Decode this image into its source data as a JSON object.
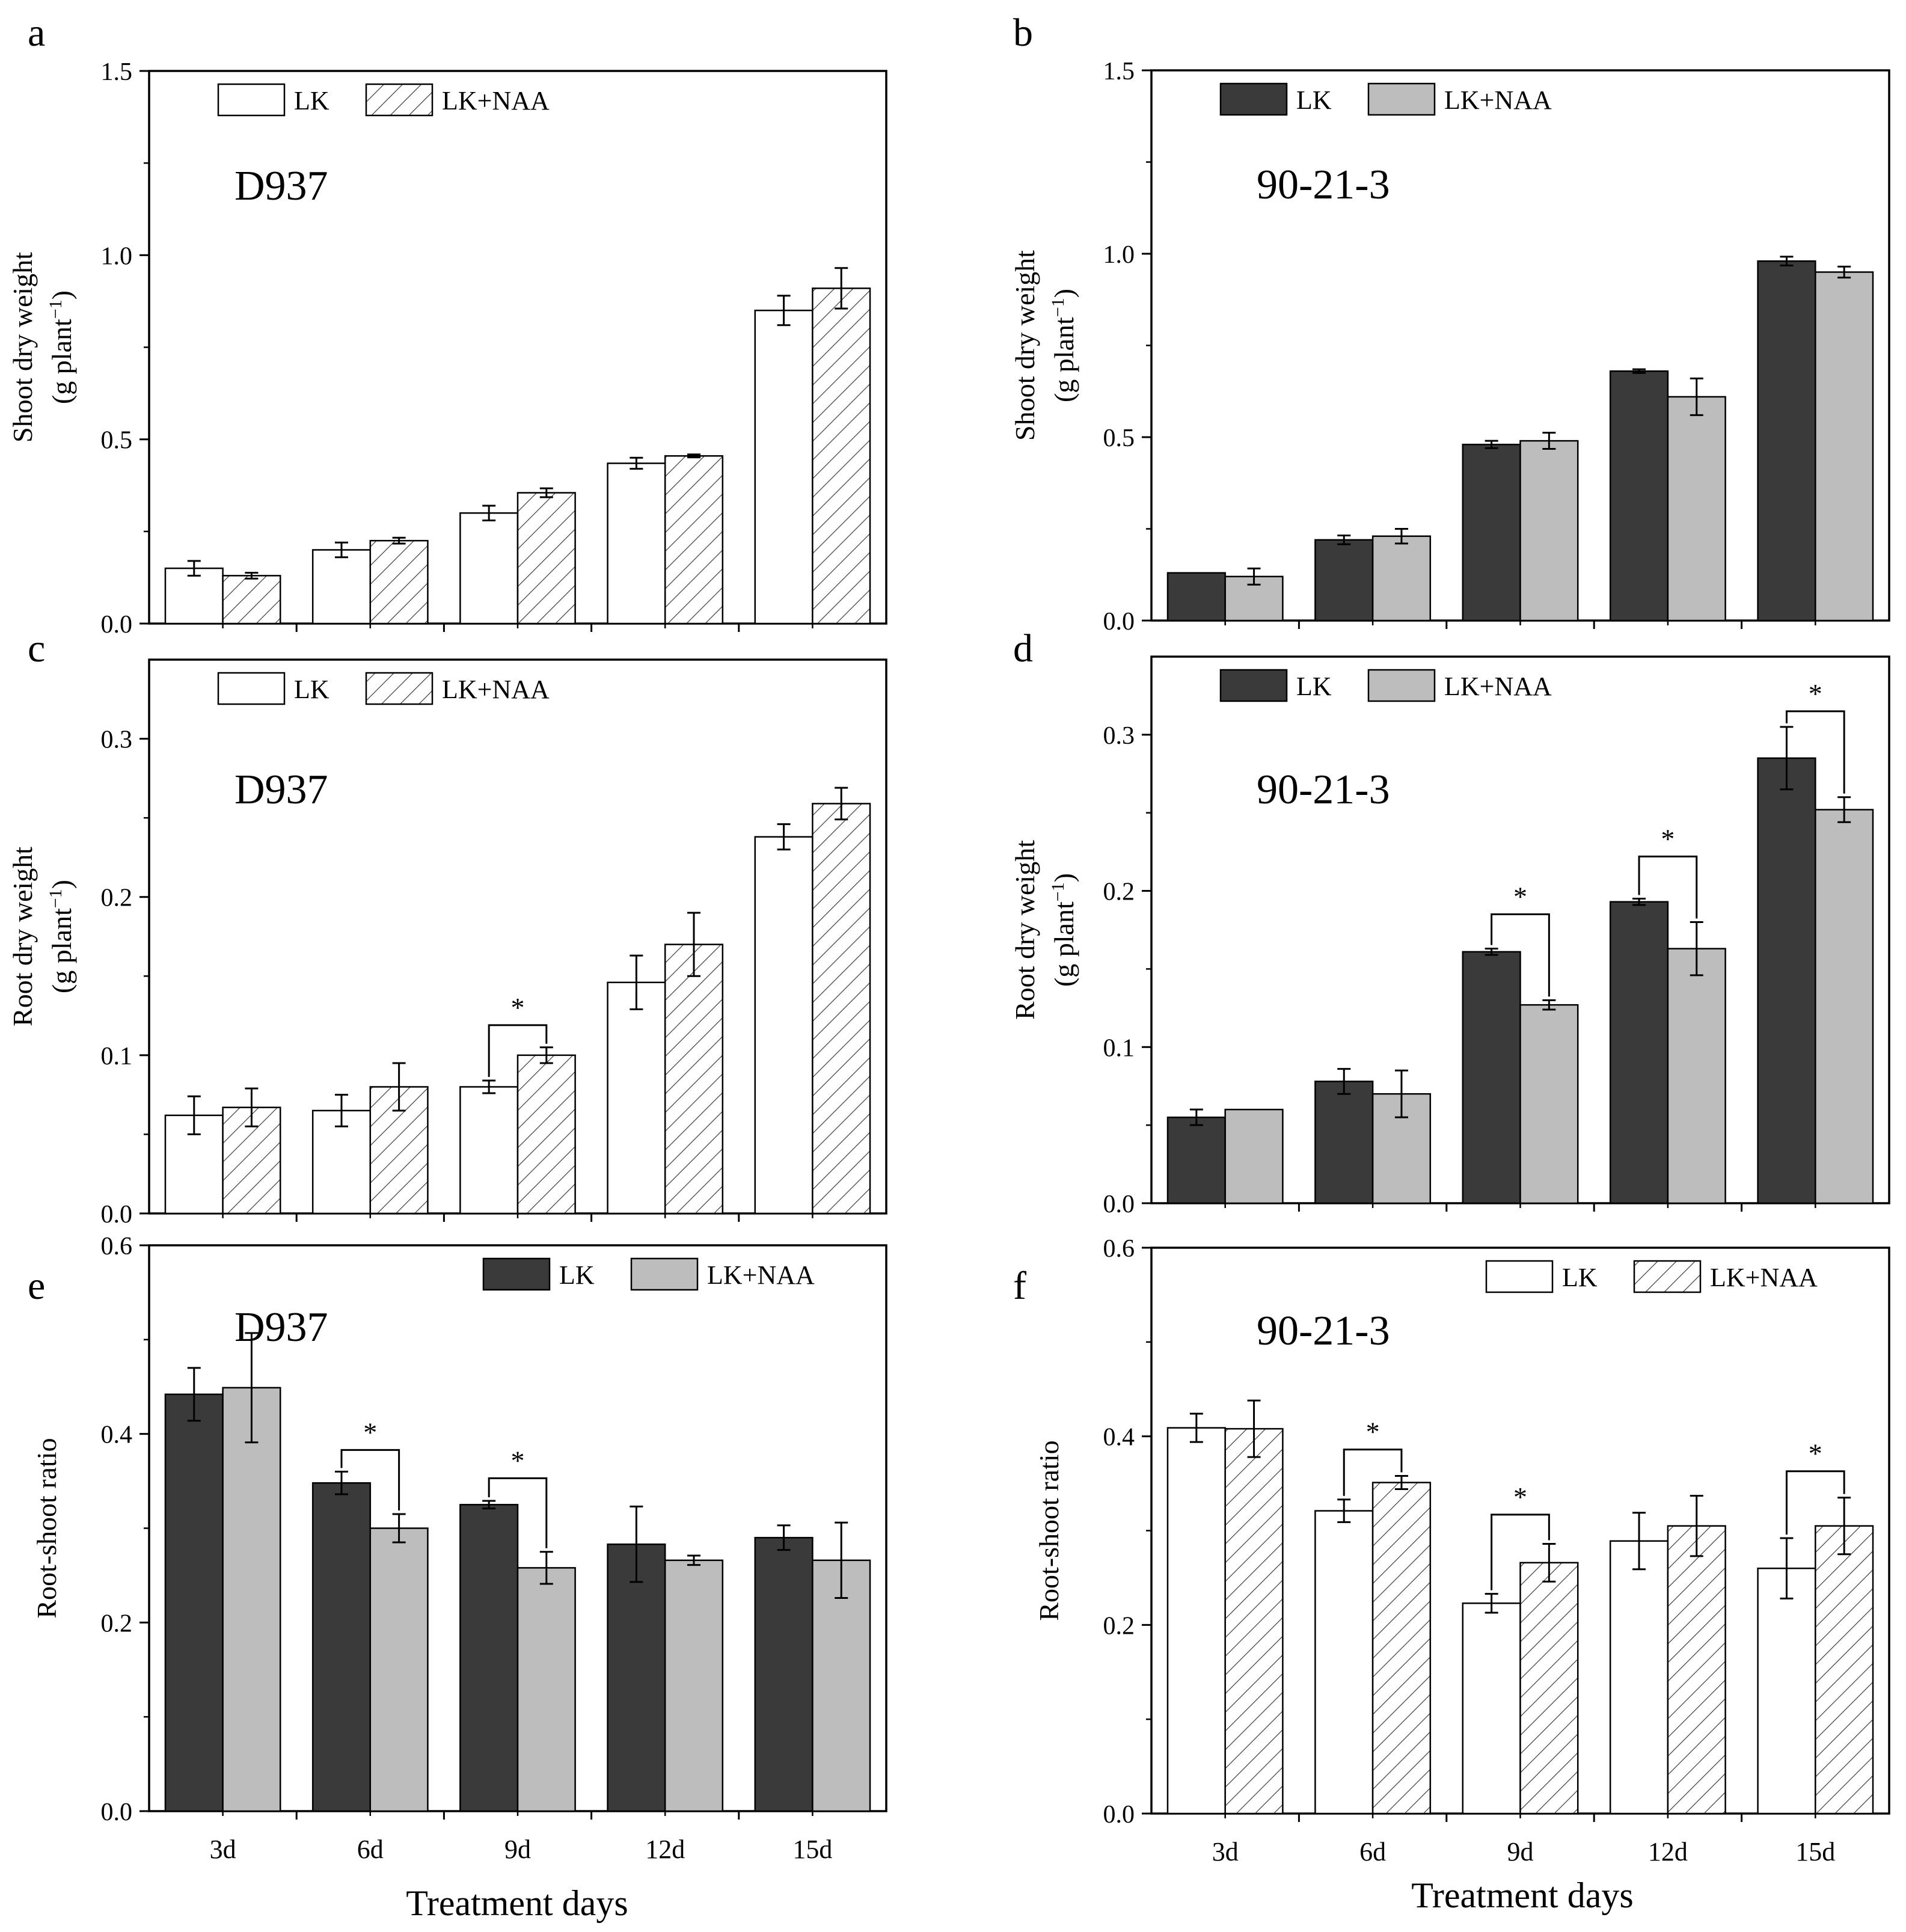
{
  "figure": {
    "x_axis_title": "Treatment days",
    "colors": {
      "dark": "#3a3a3a",
      "light": "#bdbdbd",
      "white": "#ffffff",
      "axis": "#000000"
    }
  },
  "chart_data": [
    {
      "panel_letter": "a",
      "type": "bar",
      "title": "D937",
      "ylabel_line1": "Shoot dry weight",
      "ylabel_line2": "(g plant",
      "ylabel_sup": "−1",
      "ylabel_close": ")",
      "xlabel": "",
      "ylim": [
        0,
        1.5
      ],
      "yticks": [
        "0.0",
        "0.5",
        "1.0",
        "1.5"
      ],
      "ytick_values": [
        0,
        0.5,
        1.0,
        1.5
      ],
      "categories": [
        "3d",
        "6d",
        "9d",
        "12d",
        "15d"
      ],
      "show_category_labels": false,
      "style": "hatch",
      "legend": [
        "LK",
        "LK+NAA"
      ],
      "legend_position": "top-left",
      "series": [
        {
          "name": "LK",
          "values": [
            0.15,
            0.2,
            0.3,
            0.435,
            0.85
          ],
          "errors": [
            0.02,
            0.02,
            0.02,
            0.015,
            0.04
          ]
        },
        {
          "name": "LK+NAA",
          "values": [
            0.13,
            0.225,
            0.355,
            0.455,
            0.91
          ],
          "errors": [
            0.008,
            0.008,
            0.012,
            0.004,
            0.055
          ]
        }
      ],
      "significance": []
    },
    {
      "panel_letter": "b",
      "type": "bar",
      "title": "90-21-3",
      "ylabel_line1": "Shoot dry weight",
      "ylabel_line2": "(g plant",
      "ylabel_sup": "−1",
      "ylabel_close": ")",
      "xlabel": "",
      "ylim": [
        0,
        1.5
      ],
      "yticks": [
        "0.0",
        "0.5",
        "1.0",
        "1.5"
      ],
      "ytick_values": [
        0,
        0.5,
        1.0,
        1.5
      ],
      "categories": [
        "3d",
        "6d",
        "9d",
        "12d",
        "15d"
      ],
      "show_category_labels": false,
      "style": "solid",
      "legend": [
        "LK",
        "LK+NAA"
      ],
      "legend_position": "top-left",
      "series": [
        {
          "name": "LK",
          "values": [
            0.13,
            0.22,
            0.48,
            0.68,
            0.98
          ],
          "errors": [
            0.0,
            0.012,
            0.01,
            0.005,
            0.012
          ]
        },
        {
          "name": "LK+NAA",
          "values": [
            0.12,
            0.23,
            0.49,
            0.61,
            0.95
          ],
          "errors": [
            0.022,
            0.02,
            0.022,
            0.05,
            0.015
          ]
        }
      ],
      "significance": []
    },
    {
      "panel_letter": "c",
      "type": "bar",
      "title": "D937",
      "ylabel_line1": "Root dry weight",
      "ylabel_line2": "(g plant",
      "ylabel_sup": "−1",
      "ylabel_close": ")",
      "xlabel": "",
      "ylim": [
        0,
        0.35
      ],
      "yticks": [
        "0.0",
        "0.1",
        "0.2",
        "0.3"
      ],
      "ytick_values": [
        0,
        0.1,
        0.2,
        0.3
      ],
      "categories": [
        "3d",
        "6d",
        "9d",
        "12d",
        "15d"
      ],
      "show_category_labels": false,
      "style": "hatch",
      "legend": [
        "LK",
        "LK+NAA"
      ],
      "legend_position": "top-left",
      "series": [
        {
          "name": "LK",
          "values": [
            0.062,
            0.065,
            0.08,
            0.146,
            0.238
          ],
          "errors": [
            0.012,
            0.01,
            0.004,
            0.017,
            0.008
          ]
        },
        {
          "name": "LK+NAA",
          "values": [
            0.067,
            0.08,
            0.1,
            0.17,
            0.259
          ],
          "errors": [
            0.012,
            0.015,
            0.005,
            0.02,
            0.01
          ]
        }
      ],
      "significance": [
        {
          "category": 2,
          "bracket_value": 0.119,
          "label": "*"
        }
      ]
    },
    {
      "panel_letter": "d",
      "type": "bar",
      "title": "90-21-3",
      "ylabel_line1": "Root dry weight",
      "ylabel_line2": "(g plant",
      "ylabel_sup": "−1",
      "ylabel_close": ")",
      "xlabel": "",
      "ylim": [
        0,
        0.35
      ],
      "yticks": [
        "0.0",
        "0.1",
        "0.2",
        "0.3"
      ],
      "ytick_values": [
        0,
        0.1,
        0.2,
        0.3
      ],
      "categories": [
        "3d",
        "6d",
        "9d",
        "12d",
        "15d"
      ],
      "show_category_labels": false,
      "style": "solid",
      "legend": [
        "LK",
        "LK+NAA"
      ],
      "legend_position": "top-left",
      "series": [
        {
          "name": "LK",
          "values": [
            0.055,
            0.078,
            0.161,
            0.193,
            0.285
          ],
          "errors": [
            0.005,
            0.008,
            0.002,
            0.002,
            0.02
          ]
        },
        {
          "name": "LK+NAA",
          "values": [
            0.06,
            0.07,
            0.127,
            0.163,
            0.252
          ],
          "errors": [
            0.0,
            0.015,
            0.003,
            0.017,
            0.008
          ]
        }
      ],
      "significance": [
        {
          "category": 2,
          "bracket_value": 0.185,
          "label": "*"
        },
        {
          "category": 3,
          "bracket_value": 0.222,
          "label": "*"
        },
        {
          "category": 4,
          "bracket_value": 0.315,
          "label": "*"
        }
      ]
    },
    {
      "panel_letter": "e",
      "type": "bar",
      "title": "D937",
      "ylabel_line1": "Root-shoot ratio",
      "xlabel": "Treatment days",
      "ylim": [
        0,
        0.6
      ],
      "yticks": [
        "0.0",
        "0.2",
        "0.4",
        "0.6"
      ],
      "ytick_values": [
        0,
        0.2,
        0.4,
        0.6
      ],
      "categories": [
        "3d",
        "6d",
        "9d",
        "12d",
        "15d"
      ],
      "show_category_labels": true,
      "style": "solid",
      "legend": [
        "LK",
        "LK+NAA"
      ],
      "legend_position": "top-right",
      "series": [
        {
          "name": "LK",
          "values": [
            0.442,
            0.348,
            0.325,
            0.283,
            0.29
          ],
          "errors": [
            0.028,
            0.012,
            0.004,
            0.04,
            0.013
          ]
        },
        {
          "name": "LK+NAA",
          "values": [
            0.449,
            0.3,
            0.258,
            0.266,
            0.266
          ],
          "errors": [
            0.058,
            0.015,
            0.017,
            0.005,
            0.04
          ]
        }
      ],
      "significance": [
        {
          "category": 1,
          "bracket_value": 0.383,
          "label": "*"
        },
        {
          "category": 2,
          "bracket_value": 0.353,
          "label": "*"
        }
      ]
    },
    {
      "panel_letter": "f",
      "type": "bar",
      "title": "90-21-3",
      "ylabel_line1": "Root-shoot ratio",
      "xlabel": "Treatment days",
      "ylim": [
        0,
        0.6
      ],
      "yticks": [
        "0.0",
        "0.2",
        "0.4",
        "0.6"
      ],
      "ytick_values": [
        0,
        0.2,
        0.4,
        0.6
      ],
      "categories": [
        "3d",
        "6d",
        "9d",
        "12d",
        "15d"
      ],
      "show_category_labels": true,
      "style": "hatch",
      "legend": [
        "LK",
        "LK+NAA"
      ],
      "legend_position": "top-right",
      "series": [
        {
          "name": "LK",
          "values": [
            0.409,
            0.321,
            0.223,
            0.289,
            0.26
          ],
          "errors": [
            0.015,
            0.012,
            0.01,
            0.03,
            0.032
          ]
        },
        {
          "name": "LK+NAA",
          "values": [
            0.408,
            0.351,
            0.266,
            0.305,
            0.305
          ],
          "errors": [
            0.03,
            0.007,
            0.02,
            0.032,
            0.03
          ]
        }
      ],
      "significance": [
        {
          "category": 1,
          "bracket_value": 0.386,
          "label": "*"
        },
        {
          "category": 2,
          "bracket_value": 0.317,
          "label": "*"
        },
        {
          "category": 4,
          "bracket_value": 0.363,
          "label": "*"
        }
      ]
    }
  ]
}
